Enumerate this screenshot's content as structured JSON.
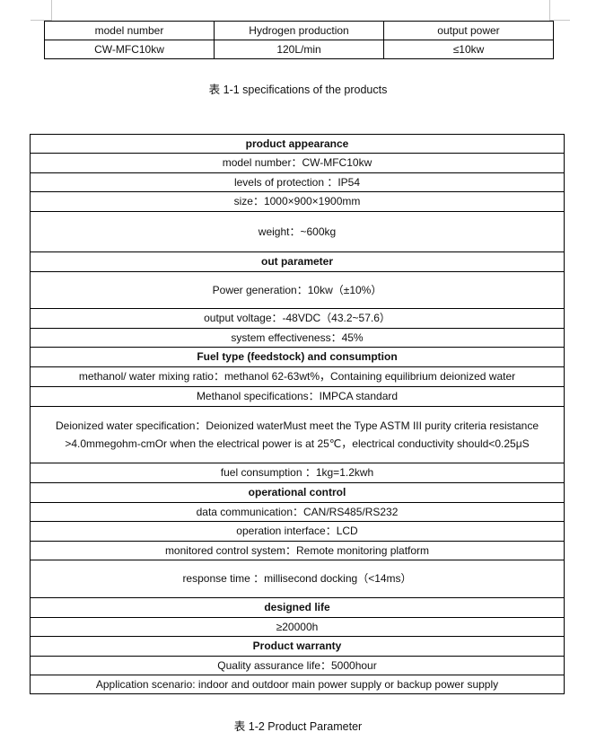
{
  "table1": {
    "headers": [
      "model number",
      "Hydrogen production",
      "output power"
    ],
    "row": [
      "CW-MFC10kw",
      "120L/min",
      "≤10kw"
    ]
  },
  "caption1": "表 1-1 specifications of the products",
  "table2": {
    "rows": [
      {
        "text": "product appearance",
        "header": true
      },
      {
        "text": "model number：CW-MFC10kw"
      },
      {
        "text": "levels of protection ：IP54"
      },
      {
        "text": "size：1000×900×1900mm"
      },
      {
        "text": "weight：~600kg"
      },
      {
        "text": "out parameter",
        "header": true
      },
      {
        "text": "Power generation：10kw（±10%）"
      },
      {
        "text": "output voltage：-48VDC（43.2~57.6）"
      },
      {
        "text": "system effectiveness：45%"
      },
      {
        "text": "Fuel type (feedstock) and consumption",
        "header": true
      },
      {
        "text": "methanol/ water mixing ratio：methanol 62-63wt%，Containing equilibrium deionized water"
      },
      {
        "text": "Methanol specifications：IMPCA standard"
      },
      {
        "text": "Deionized water specification：Deionized waterMust meet the Type ASTM III purity criteria resistance >4.0mmegohm-cmOr when the electrical power is at 25℃，electrical conductivity should<0.25μS"
      },
      {
        "text": "fuel consumption ：1kg=1.2kwh"
      },
      {
        "text": "operational control",
        "header": true
      },
      {
        "text": "data communication：CAN/RS485/RS232"
      },
      {
        "text": "operation interface：LCD"
      },
      {
        "text": "monitored control system：Remote monitoring platform"
      },
      {
        "text": "response time ：millisecond docking（<14ms）"
      },
      {
        "text": "designed life",
        "header": true
      },
      {
        "text": "≥20000h"
      },
      {
        "text": "Product warranty",
        "header": true
      },
      {
        "text": "Quality assurance life：5000hour"
      },
      {
        "text": "Application scenario: indoor and outdoor main power supply or backup power supply"
      }
    ]
  },
  "caption2": "表 1-2 Product Parameter"
}
